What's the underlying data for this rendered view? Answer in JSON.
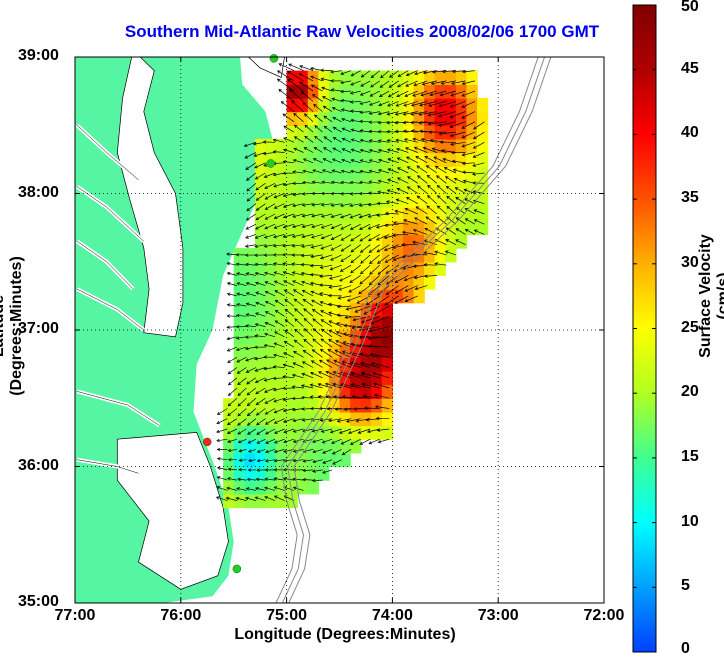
{
  "title": "Southern Mid-Atlantic Raw Velocities 2008/02/06 1700 GMT",
  "x_axis": {
    "label": "Longitude (Degrees:Minutes)",
    "ticks": [
      "77:00",
      "76:00",
      "75:00",
      "74:00",
      "73:00",
      "72:00"
    ]
  },
  "y_axis": {
    "label": "Latitude (Degrees:Minutes)",
    "ticks": [
      "39:00",
      "38:00",
      "37:00",
      "36:00",
      "35:00"
    ]
  },
  "colorbar": {
    "label": "Surface Velocity (cm/s)",
    "ticks": [
      "50",
      "45",
      "40",
      "35",
      "30",
      "25",
      "20",
      "15",
      "10",
      "5",
      "0"
    ],
    "range": [
      0,
      50
    ],
    "colormap": [
      "#0040ff",
      "#00a0ff",
      "#00ffff",
      "#40ff90",
      "#b0ff20",
      "#ffff00",
      "#ffb000",
      "#ff5000",
      "#ff0000",
      "#b00000",
      "#800000"
    ]
  },
  "map": {
    "lon_range": [
      -77,
      -72
    ],
    "lat_range": [
      35,
      39
    ],
    "grid": true,
    "land_color": "#55f5a4",
    "water_color": "#ffffff",
    "stations": [
      {
        "lon": -75.12,
        "lat": 38.99,
        "color": "#22cc22"
      },
      {
        "lon": -75.15,
        "lat": 38.22,
        "color": "#22cc22"
      },
      {
        "lon": -75.75,
        "lat": 36.18,
        "color": "#ff2020"
      },
      {
        "lon": -75.47,
        "lat": 35.25,
        "color": "#22cc22"
      }
    ]
  }
}
